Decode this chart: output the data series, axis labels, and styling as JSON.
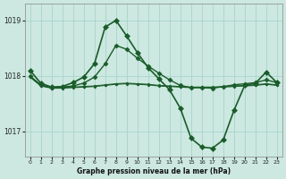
{
  "bg_color": "#cce8e0",
  "grid_color": "#a8d4cc",
  "line_color": "#1a5c2a",
  "xlabel": "Graphe pression niveau de la mer (hPa)",
  "xlim": [
    -0.5,
    23.5
  ],
  "ylim": [
    1016.55,
    1019.3
  ],
  "yticks": [
    1017,
    1018,
    1019
  ],
  "xticks": [
    0,
    1,
    2,
    3,
    4,
    5,
    6,
    7,
    8,
    9,
    10,
    11,
    12,
    13,
    14,
    15,
    16,
    17,
    18,
    19,
    20,
    21,
    22,
    23
  ],
  "series": [
    {
      "x": [
        0,
        1,
        2,
        3,
        4,
        5,
        6,
        7,
        8,
        9,
        10,
        11,
        12,
        13,
        14,
        15,
        16,
        17,
        18,
        19,
        20,
        21,
        22,
        23
      ],
      "y": [
        1017.98,
        1017.82,
        1017.78,
        1017.78,
        1017.79,
        1017.8,
        1017.81,
        1017.83,
        1017.85,
        1017.86,
        1017.85,
        1017.84,
        1017.82,
        1017.81,
        1017.8,
        1017.79,
        1017.79,
        1017.79,
        1017.8,
        1017.81,
        1017.82,
        1017.83,
        1017.85,
        1017.83
      ],
      "marker": "D",
      "markersize": 1.5,
      "lw": 0.8
    },
    {
      "x": [
        0,
        1,
        2,
        3,
        4,
        5,
        6,
        7,
        8,
        9,
        10,
        11,
        12,
        13,
        14,
        15,
        16,
        17,
        18,
        19,
        20,
        21,
        22,
        23
      ],
      "y": [
        1017.99,
        1017.83,
        1017.79,
        1017.79,
        1017.8,
        1017.81,
        1017.82,
        1017.84,
        1017.86,
        1017.87,
        1017.86,
        1017.85,
        1017.83,
        1017.82,
        1017.81,
        1017.8,
        1017.8,
        1017.8,
        1017.81,
        1017.82,
        1017.83,
        1017.84,
        1017.86,
        1017.84
      ],
      "marker": "D",
      "markersize": 1.5,
      "lw": 0.8
    },
    {
      "x": [
        0,
        1,
        2,
        3,
        4,
        5,
        6,
        7,
        8,
        9,
        10,
        11,
        12,
        13,
        14,
        15,
        16,
        17,
        18,
        19,
        20,
        21,
        22,
        23
      ],
      "y": [
        1018.0,
        1017.84,
        1017.79,
        1017.8,
        1017.82,
        1017.87,
        1017.98,
        1018.22,
        1018.55,
        1018.48,
        1018.32,
        1018.18,
        1018.05,
        1017.93,
        1017.83,
        1017.79,
        1017.79,
        1017.78,
        1017.81,
        1017.84,
        1017.86,
        1017.88,
        1017.93,
        1017.88
      ],
      "marker": "D",
      "markersize": 2.5,
      "lw": 1.0
    },
    {
      "x": [
        0,
        1,
        2,
        3,
        4,
        5,
        6,
        7,
        8,
        9,
        10,
        11,
        12,
        13,
        14,
        15,
        16,
        17,
        18,
        19,
        20,
        21,
        22,
        23
      ],
      "y": [
        1018.1,
        1017.87,
        1017.8,
        1017.81,
        1017.88,
        1017.98,
        1018.22,
        1018.88,
        1019.0,
        1018.72,
        1018.42,
        1018.15,
        1017.95,
        1017.75,
        1017.42,
        1016.88,
        1016.72,
        1016.7,
        1016.85,
        1017.38,
        1017.83,
        1017.87,
        1018.07,
        1017.88
      ],
      "marker": "D",
      "markersize": 3.0,
      "lw": 1.2
    }
  ]
}
